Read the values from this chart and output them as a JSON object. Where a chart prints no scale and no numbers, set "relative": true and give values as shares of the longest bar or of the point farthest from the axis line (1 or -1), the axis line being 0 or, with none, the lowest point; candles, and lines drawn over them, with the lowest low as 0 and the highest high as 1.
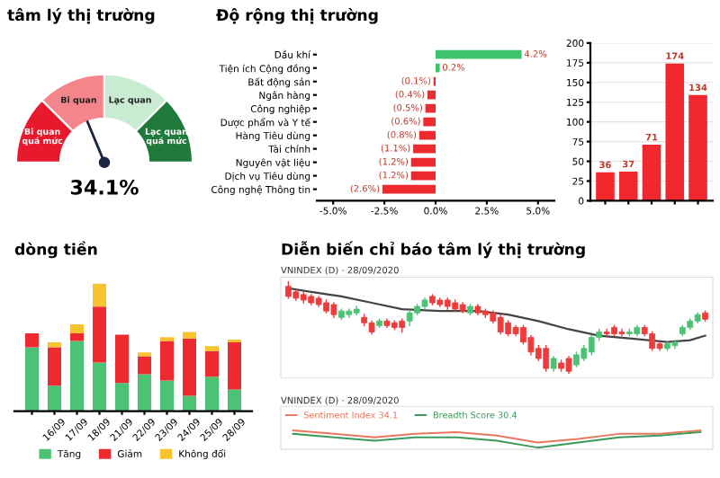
{
  "chart_data": [
    {
      "type": "donut",
      "title": "tâm lý thị trường",
      "categories": [
        "Bi quan quá mức",
        "Bi quan",
        "Lạc quan",
        "Lạc quan quá mức"
      ],
      "values": [
        25,
        25,
        25,
        25
      ],
      "colors": [
        "#e8192c",
        "#f4868b",
        "#c8ebd2",
        "#1f7a3b"
      ],
      "needle": "Bi quan",
      "annotations": [
        "34.1%"
      ]
    },
    {
      "type": "bar",
      "orientation": "horizontal",
      "title": "Độ rộng thị trường",
      "categories": [
        "Dầu khí",
        "Tiện ích Cộng đồng",
        "Bất động sản",
        "Ngân hàng",
        "Công nghiệp",
        "Dược phẩm và Y tế",
        "Hàng Tiêu dùng",
        "Tài chính",
        "Nguyên vật liệu",
        "Dịch vụ Tiêu dùng",
        "Công nghệ Thông tin"
      ],
      "values": [
        4.2,
        0.2,
        -0.1,
        -0.4,
        -0.5,
        -0.6,
        -0.8,
        -1.1,
        -1.2,
        -1.2,
        -2.6
      ],
      "colors": [
        "#3cc36b",
        "#3cc36b",
        "#ee2a2e",
        "#ee2a2e",
        "#ee2a2e",
        "#ee2a2e",
        "#ee2a2e",
        "#ee2a2e",
        "#ee2a2e",
        "#ee2a2e",
        "#ee2a2e"
      ],
      "value_labels": [
        "4.2%",
        "0.2%",
        "(0.1%)",
        "(0.4%)",
        "(0.5%)",
        "(0.6%)",
        "(0.8%)",
        "(1.1%)",
        "(1.2%)",
        "(1.2%)",
        "(2.6%)"
      ],
      "xlim": [
        -5.8,
        5.8
      ],
      "xticks": [
        {
          "value": -5,
          "label": "-5.0%"
        },
        {
          "value": -2.5,
          "label": "-2.5%"
        },
        {
          "value": 0,
          "label": "0.0%"
        },
        {
          "value": 2.5,
          "label": "2.5%"
        },
        {
          "value": 5,
          "label": "5.0%"
        }
      ],
      "grid": false
    },
    {
      "type": "bar",
      "categories": [
        null,
        null,
        null,
        null,
        null
      ],
      "values": [
        36,
        37,
        71,
        174,
        134
      ],
      "colors": [
        "#f0282d",
        "#f0282d",
        "#f0282d",
        "#f0282d",
        "#f0282d"
      ],
      "data_labels": true,
      "ylim": [
        0,
        200
      ],
      "yticks": [
        0,
        25,
        50,
        75,
        100,
        125,
        150,
        175,
        200
      ],
      "grid": "y"
    },
    {
      "type": "bar",
      "stacked": true,
      "relative": true,
      "title": "dòng tiền",
      "categories": [
        null,
        "16/09",
        "17/09",
        "18/09",
        "21/09",
        "22/09",
        "23/09",
        "24/09",
        "25/09",
        "28/09"
      ],
      "series": [
        {
          "name": "Tăng",
          "color": "#4cc274",
          "values": [
            0.5,
            0.2,
            0.55,
            0.38,
            0.22,
            0.29,
            0.24,
            0.12,
            0.27,
            0.17
          ]
        },
        {
          "name": "Giảm",
          "color": "#ee2a2e",
          "values": [
            0.11,
            0.3,
            0.06,
            0.44,
            0.38,
            0.14,
            0.31,
            0.45,
            0.2,
            0.37
          ]
        },
        {
          "name": "Không đổi",
          "color": "#f8c32c",
          "values": [
            0,
            0.04,
            0.07,
            0.18,
            0,
            0.03,
            0.03,
            0.05,
            0.04,
            0.02
          ]
        }
      ],
      "legend": "bottom"
    },
    {
      "type": "candlestick",
      "relative": true,
      "title": "Diễn biến chỉ báo tâm lý thị trường",
      "subtitle": "VNINDEX (D) · 28/09/2020",
      "categories": [
        null,
        null,
        null,
        null,
        null,
        null,
        null,
        null,
        null,
        null,
        null,
        null,
        null,
        null,
        null,
        null,
        null,
        null,
        null,
        null,
        null,
        null,
        null,
        null,
        null,
        null,
        null,
        null,
        null,
        null,
        null,
        null,
        null,
        null,
        null,
        null,
        null,
        null,
        null,
        null,
        null,
        null,
        null,
        null,
        null,
        null,
        null,
        null,
        null,
        null,
        null,
        null,
        null,
        null,
        null,
        null
      ],
      "ohlc": [
        [
          0.95,
          1.0,
          0.82,
          0.84
        ],
        [
          0.89,
          0.91,
          0.8,
          0.82
        ],
        [
          0.86,
          0.89,
          0.77,
          0.8
        ],
        [
          0.84,
          0.86,
          0.75,
          0.77
        ],
        [
          0.82,
          0.84,
          0.73,
          0.75
        ],
        [
          0.77,
          0.8,
          0.66,
          0.68
        ],
        [
          0.75,
          0.77,
          0.61,
          0.64
        ],
        [
          0.61,
          0.7,
          0.59,
          0.68
        ],
        [
          0.64,
          0.7,
          0.61,
          0.68
        ],
        [
          0.66,
          0.73,
          0.64,
          0.7
        ],
        [
          0.61,
          0.64,
          0.52,
          0.55
        ],
        [
          0.55,
          0.57,
          0.43,
          0.45
        ],
        [
          0.52,
          0.59,
          0.5,
          0.57
        ],
        [
          0.57,
          0.59,
          0.5,
          0.52
        ],
        [
          0.55,
          0.57,
          0.48,
          0.5
        ],
        [
          0.57,
          0.59,
          0.45,
          0.5
        ],
        [
          0.57,
          0.68,
          0.52,
          0.66
        ],
        [
          0.66,
          0.75,
          0.64,
          0.73
        ],
        [
          0.73,
          0.82,
          0.7,
          0.8
        ],
        [
          0.84,
          0.86,
          0.75,
          0.77
        ],
        [
          0.8,
          0.82,
          0.73,
          0.75
        ],
        [
          0.8,
          0.82,
          0.7,
          0.73
        ],
        [
          0.77,
          0.8,
          0.68,
          0.7
        ],
        [
          0.75,
          0.77,
          0.66,
          0.68
        ],
        [
          0.66,
          0.75,
          0.64,
          0.73
        ],
        [
          0.73,
          0.75,
          0.64,
          0.66
        ],
        [
          0.68,
          0.7,
          0.61,
          0.64
        ],
        [
          0.66,
          0.68,
          0.55,
          0.57
        ],
        [
          0.61,
          0.64,
          0.43,
          0.45
        ],
        [
          0.55,
          0.57,
          0.41,
          0.43
        ],
        [
          0.5,
          0.52,
          0.41,
          0.43
        ],
        [
          0.5,
          0.52,
          0.32,
          0.34
        ],
        [
          0.39,
          0.41,
          0.2,
          0.23
        ],
        [
          0.27,
          0.3,
          0.14,
          0.16
        ],
        [
          0.27,
          0.3,
          0.02,
          0.05
        ],
        [
          0.05,
          0.18,
          0.02,
          0.16
        ],
        [
          0.11,
          0.14,
          0.02,
          0.05
        ],
        [
          0.16,
          0.18,
          0.0,
          0.02
        ],
        [
          0.09,
          0.23,
          0.07,
          0.2
        ],
        [
          0.16,
          0.3,
          0.14,
          0.27
        ],
        [
          0.23,
          0.41,
          0.2,
          0.39
        ],
        [
          0.39,
          0.48,
          0.36,
          0.45
        ],
        [
          0.45,
          0.48,
          0.41,
          0.43
        ],
        [
          0.5,
          0.52,
          0.41,
          0.43
        ],
        [
          0.45,
          0.48,
          0.41,
          0.43
        ],
        [
          0.43,
          0.48,
          0.41,
          0.45
        ],
        [
          0.43,
          0.52,
          0.41,
          0.5
        ],
        [
          0.5,
          0.52,
          0.41,
          0.43
        ],
        [
          0.43,
          0.45,
          0.25,
          0.27
        ],
        [
          0.32,
          0.34,
          0.25,
          0.27
        ],
        [
          0.27,
          0.34,
          0.25,
          0.32
        ],
        [
          0.3,
          0.36,
          0.27,
          0.34
        ],
        [
          0.43,
          0.52,
          0.41,
          0.5
        ],
        [
          0.5,
          0.59,
          0.48,
          0.57
        ],
        [
          0.57,
          0.66,
          0.55,
          0.64
        ],
        [
          0.66,
          0.68,
          0.57,
          0.59
        ]
      ],
      "series": [
        {
          "type": "line",
          "color": "#444444",
          "values": [
            0.93,
            null,
            null,
            0.89,
            null,
            null,
            null,
            0.84,
            null,
            null,
            null,
            0.77,
            null,
            null,
            null,
            0.7,
            null,
            null,
            null,
            null,
            0.68,
            null,
            null,
            null,
            null,
            0.68,
            null,
            null,
            null,
            0.64,
            null,
            null,
            null,
            0.57,
            null,
            null,
            null,
            0.48,
            null,
            null,
            null,
            0.41,
            null,
            null,
            null,
            0.38,
            null,
            null,
            null,
            null,
            0.34,
            null,
            null,
            0.36,
            null,
            0.41
          ]
        }
      ]
    },
    {
      "type": "line",
      "relative": true,
      "subtitle": "VNINDEX (D) · 28/09/2020",
      "categories": [
        null,
        null,
        null,
        null,
        null,
        null,
        null,
        null,
        null,
        null,
        null
      ],
      "legend": "top left",
      "series": [
        {
          "name": "Sentiment Index 34.1",
          "color": "#e8775f",
          "values": [
            1.0,
            0.8,
            0.6,
            0.8,
            0.9,
            0.7,
            0.3,
            0.5,
            0.8,
            0.8,
            1.0
          ]
        },
        {
          "name": "Breadth Score 30.4",
          "color": "#3a9a5a",
          "values": [
            0.8,
            0.6,
            0.4,
            0.6,
            0.6,
            0.4,
            0.0,
            0.3,
            0.6,
            0.7,
            0.9
          ]
        }
      ]
    }
  ]
}
